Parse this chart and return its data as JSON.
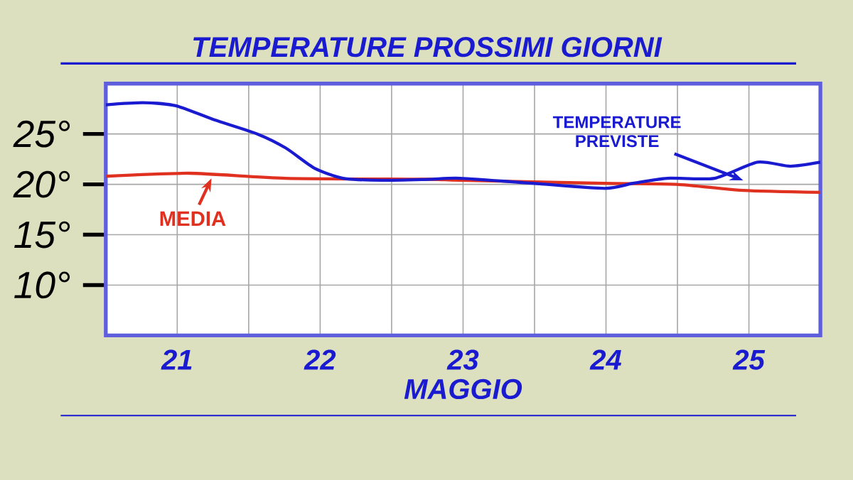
{
  "chart_data": {
    "type": "line",
    "title": "TEMPERATURE PROSSIMI GIORNI",
    "xlabel": "MAGGIO",
    "xlim": [
      20.5,
      25.5
    ],
    "xticks": [
      {
        "value": 21,
        "label": "21"
      },
      {
        "value": 21.5,
        "label": null
      },
      {
        "value": 22,
        "label": "22"
      },
      {
        "value": 22.5,
        "label": null
      },
      {
        "value": 23,
        "label": "23"
      },
      {
        "value": 23.5,
        "label": null
      },
      {
        "value": 24,
        "label": "24"
      },
      {
        "value": 24.5,
        "label": null
      },
      {
        "value": 25,
        "label": "25"
      }
    ],
    "ylim": [
      5,
      30
    ],
    "yticks": [
      {
        "value": 10,
        "label": "10°"
      },
      {
        "value": 15,
        "label": "15°"
      },
      {
        "value": 20,
        "label": "20°"
      },
      {
        "value": 25,
        "label": "25°"
      }
    ],
    "grid": true,
    "marker": "none",
    "line_style": "solid",
    "series": [
      {
        "name": "MEDIA",
        "color": "#e03020",
        "x": [
          20.5,
          21.09,
          21.76,
          22.76,
          22.98,
          23.99,
          24.49,
          24.96,
          25.5
        ],
        "values": [
          20.8,
          21.1,
          20.6,
          20.5,
          20.4,
          20.1,
          20.0,
          19.4,
          19.2
        ]
      },
      {
        "name": "TEMPERATURE PREVISTE",
        "color": "#1a1ad0",
        "x": [
          20.5,
          20.76,
          20.99,
          21.26,
          21.56,
          21.76,
          21.96,
          22.16,
          22.43,
          22.76,
          22.98,
          23.49,
          23.99,
          24.19,
          24.43,
          24.76,
          25.06,
          25.29,
          25.5
        ],
        "values": [
          27.9,
          28.1,
          27.8,
          26.4,
          25.0,
          23.6,
          21.6,
          20.6,
          20.4,
          20.5,
          20.6,
          20.1,
          19.6,
          20.1,
          20.6,
          20.6,
          22.2,
          21.8,
          22.2
        ]
      }
    ]
  }
}
